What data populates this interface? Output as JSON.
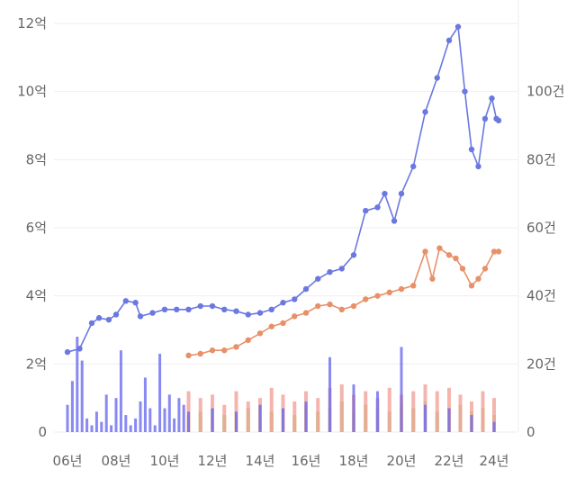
{
  "chart_data": {
    "type": "line",
    "title": "",
    "xlabel": "",
    "ylabel": "",
    "x_ticks": [
      "06년",
      "08년",
      "10년",
      "12년",
      "14년",
      "16년",
      "18년",
      "20년",
      "22년",
      "24년"
    ],
    "x_range": [
      2006.0,
      2024.3
    ],
    "y_left": {
      "unit": "억",
      "ylim": [
        0,
        12
      ],
      "ticks": [
        "0",
        "2억",
        "4억",
        "6억",
        "8억",
        "10억",
        "12억"
      ]
    },
    "y_right": {
      "unit": "건",
      "ylim": [
        0,
        120
      ],
      "ticks": [
        "0",
        "20건",
        "40건",
        "60건",
        "80건",
        "100건"
      ]
    },
    "grid": true,
    "legend": "none",
    "colors": {
      "price_blue": "#6a78e0",
      "price_orange": "#e8906a",
      "bar_blue": "#6c6cf0",
      "bar_pink": "#f3a7a0",
      "bar_green": "#8cc34a"
    },
    "series": [
      {
        "axis": "left",
        "kind": "line",
        "color_key": "price_blue",
        "x": [
          2006.0,
          2006.5,
          2007.0,
          2007.3,
          2007.7,
          2008.0,
          2008.4,
          2008.8,
          2009.0,
          2009.5,
          2010.0,
          2010.5,
          2011.0,
          2011.5,
          2012.0,
          2012.5,
          2013.0,
          2013.5,
          2014.0,
          2014.5,
          2015.0,
          2015.5,
          2016.0,
          2016.5,
          2017.0,
          2017.5,
          2018.0,
          2018.5,
          2019.0,
          2019.3,
          2019.7,
          2020.0,
          2020.5,
          2021.0,
          2021.5,
          2022.0,
          2022.4,
          2022.7,
          2023.0,
          2023.3,
          2023.6,
          2023.9,
          2024.1,
          2024.2
        ],
        "y": [
          2.35,
          2.45,
          3.2,
          3.35,
          3.3,
          3.45,
          3.85,
          3.8,
          3.4,
          3.5,
          3.6,
          3.6,
          3.6,
          3.7,
          3.7,
          3.6,
          3.55,
          3.45,
          3.5,
          3.6,
          3.8,
          3.9,
          4.2,
          4.5,
          4.7,
          4.8,
          5.2,
          6.5,
          6.6,
          7.0,
          6.2,
          7.0,
          7.8,
          9.4,
          10.4,
          11.5,
          11.9,
          10.0,
          8.3,
          7.8,
          9.2,
          9.8,
          9.2,
          9.15
        ]
      },
      {
        "axis": "left",
        "kind": "line",
        "color_key": "price_orange",
        "x": [
          2011.0,
          2011.5,
          2012.0,
          2012.5,
          2013.0,
          2013.5,
          2014.0,
          2014.5,
          2015.0,
          2015.5,
          2016.0,
          2016.5,
          2017.0,
          2017.5,
          2018.0,
          2018.5,
          2019.0,
          2019.5,
          2020.0,
          2020.5,
          2021.0,
          2021.3,
          2021.6,
          2022.0,
          2022.3,
          2022.6,
          2023.0,
          2023.3,
          2023.6,
          2024.0,
          2024.2
        ],
        "y": [
          2.25,
          2.3,
          2.4,
          2.4,
          2.5,
          2.7,
          2.9,
          3.1,
          3.2,
          3.4,
          3.5,
          3.7,
          3.75,
          3.6,
          3.7,
          3.9,
          4.0,
          4.1,
          4.2,
          4.3,
          5.3,
          4.5,
          5.4,
          5.2,
          5.1,
          4.8,
          4.3,
          4.5,
          4.8,
          5.3,
          5.3
        ]
      }
    ],
    "bars": {
      "axis": "right",
      "blue": {
        "x": [
          2006.0,
          2006.2,
          2006.4,
          2006.6,
          2006.8,
          2007.0,
          2007.2,
          2007.4,
          2007.6,
          2007.8,
          2008.0,
          2008.2,
          2008.4,
          2008.6,
          2008.8,
          2009.0,
          2009.2,
          2009.4,
          2009.6,
          2009.8,
          2010.0,
          2010.2,
          2010.4,
          2010.6,
          2010.8,
          2011.0,
          2012.0,
          2013.0,
          2014.0,
          2015.0,
          2016.0,
          2017.0,
          2018.0,
          2019.0,
          2020.0,
          2021.0,
          2022.0,
          2023.0,
          2024.0
        ],
        "y": [
          8,
          15,
          28,
          21,
          4,
          2,
          6,
          3,
          11,
          2,
          10,
          24,
          5,
          2,
          4,
          9,
          16,
          7,
          2,
          23,
          7,
          11,
          4,
          10,
          8,
          6,
          7,
          6,
          8,
          7,
          9,
          22,
          14,
          12,
          25,
          8,
          7,
          5,
          3
        ]
      },
      "pink": {
        "x": [
          2011.0,
          2011.5,
          2012.0,
          2012.5,
          2013.0,
          2013.5,
          2014.0,
          2014.5,
          2015.0,
          2015.5,
          2016.0,
          2016.5,
          2017.0,
          2017.5,
          2018.0,
          2018.5,
          2019.0,
          2019.5,
          2020.0,
          2020.5,
          2021.0,
          2021.5,
          2022.0,
          2022.5,
          2023.0,
          2023.5,
          2024.0
        ],
        "y": [
          12,
          10,
          11,
          8,
          12,
          9,
          10,
          13,
          11,
          9,
          12,
          10,
          13,
          14,
          11,
          12,
          10,
          13,
          11,
          12,
          14,
          12,
          13,
          11,
          9,
          12,
          10
        ]
      },
      "green": {
        "x": [
          2011.0,
          2011.5,
          2012.0,
          2012.5,
          2013.0,
          2013.5,
          2014.0,
          2014.5,
          2015.0,
          2015.5,
          2016.0,
          2016.5,
          2017.0,
          2017.5,
          2018.0,
          2018.5,
          2019.0,
          2019.5,
          2020.0,
          2020.5,
          2021.0,
          2021.5,
          2022.0,
          2022.5,
          2023.0,
          2023.5,
          2024.0
        ],
        "y": [
          5,
          6,
          7,
          5,
          6,
          7,
          8,
          6,
          7,
          5,
          8,
          6,
          7,
          9,
          6,
          8,
          7,
          6,
          8,
          7,
          9,
          6,
          7,
          8,
          6,
          7,
          5
        ]
      }
    }
  }
}
